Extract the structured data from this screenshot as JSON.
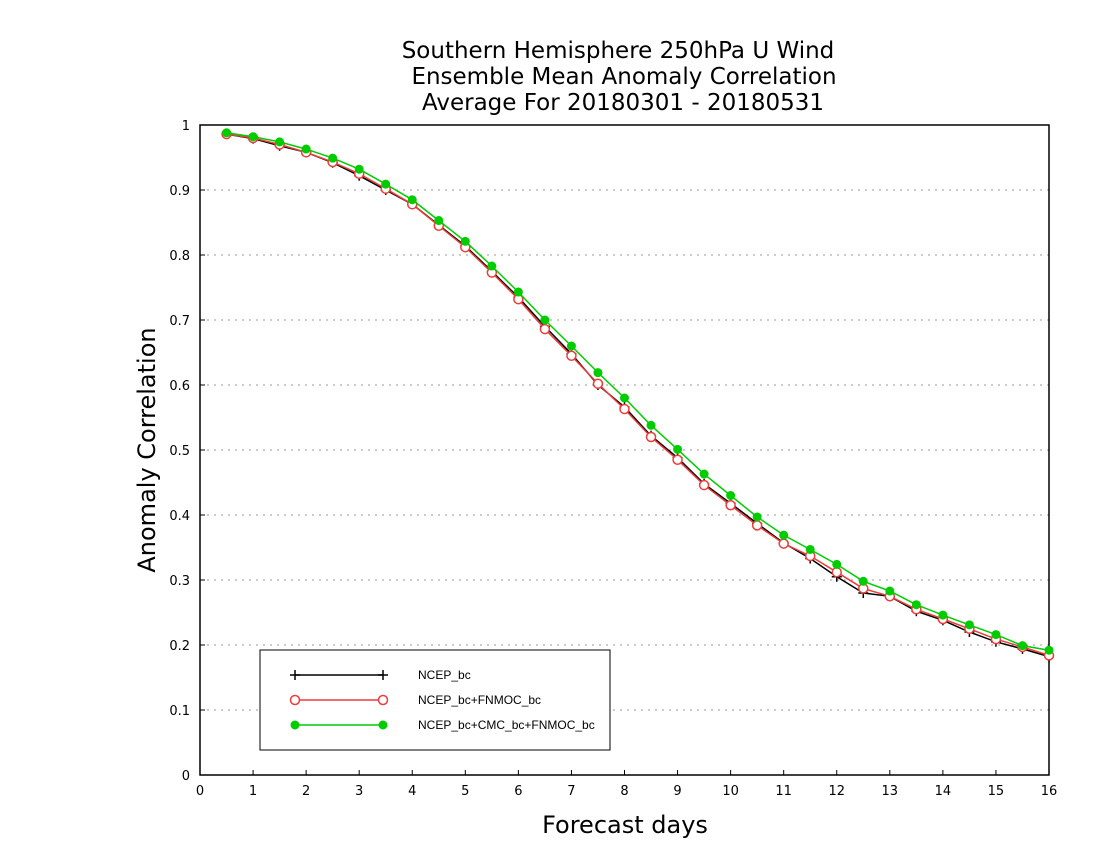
{
  "chart_data": {
    "type": "line",
    "title": [
      "Southern Hemisphere 250hPa U Wind",
      "Ensemble Mean Anomaly Correlation",
      "Average For 20180301 - 20180531"
    ],
    "xlabel": "Forecast days",
    "ylabel": "Anomaly Correlation",
    "xlim": [
      0,
      16
    ],
    "ylim": [
      0,
      1
    ],
    "xticks": [
      "0",
      "1",
      "2",
      "3",
      "4",
      "5",
      "6",
      "7",
      "8",
      "9",
      "10",
      "11",
      "12",
      "13",
      "14",
      "15",
      "16"
    ],
    "yticks": [
      "0",
      "0.1",
      "0.2",
      "0.3",
      "0.4",
      "0.5",
      "0.6",
      "0.7",
      "0.8",
      "0.9",
      "1"
    ],
    "grid": "horizontal dotted",
    "legend_position": "bottom-left",
    "x": [
      0.5,
      1,
      1.5,
      2,
      2.5,
      3,
      3.5,
      4,
      4.5,
      5,
      5.5,
      6,
      6.5,
      7,
      7.5,
      8,
      8.5,
      9,
      9.5,
      10,
      10.5,
      11,
      11.5,
      12,
      12.5,
      13,
      13.5,
      14,
      14.5,
      15,
      15.5,
      16
    ],
    "series": [
      {
        "name": "NCEP_bc",
        "color": "#000000",
        "marker": "plus",
        "values": [
          0.986,
          0.979,
          0.968,
          0.958,
          0.942,
          0.922,
          0.9,
          0.878,
          0.846,
          0.814,
          0.775,
          0.735,
          0.69,
          0.648,
          0.6,
          0.566,
          0.522,
          0.488,
          0.448,
          0.418,
          0.387,
          0.357,
          0.333,
          0.305,
          0.28,
          0.275,
          0.252,
          0.238,
          0.22,
          0.205,
          0.194,
          0.182
        ]
      },
      {
        "name": "NCEP_bc+FNMOC_bc",
        "color": "#ee3b3b",
        "marker": "open-circle",
        "values": [
          0.986,
          0.98,
          0.97,
          0.958,
          0.943,
          0.925,
          0.902,
          0.878,
          0.845,
          0.812,
          0.773,
          0.732,
          0.686,
          0.645,
          0.602,
          0.563,
          0.52,
          0.485,
          0.446,
          0.415,
          0.384,
          0.356,
          0.337,
          0.312,
          0.287,
          0.275,
          0.255,
          0.24,
          0.225,
          0.209,
          0.197,
          0.184
        ]
      },
      {
        "name": "NCEP_bc+CMC_bc+FNMOC_bc",
        "color": "#00cc00",
        "marker": "filled-circle",
        "values": [
          0.988,
          0.982,
          0.974,
          0.963,
          0.949,
          0.932,
          0.909,
          0.885,
          0.853,
          0.821,
          0.783,
          0.743,
          0.7,
          0.66,
          0.619,
          0.58,
          0.538,
          0.501,
          0.463,
          0.43,
          0.397,
          0.369,
          0.347,
          0.324,
          0.298,
          0.283,
          0.262,
          0.246,
          0.231,
          0.216,
          0.199,
          0.192
        ]
      }
    ]
  }
}
